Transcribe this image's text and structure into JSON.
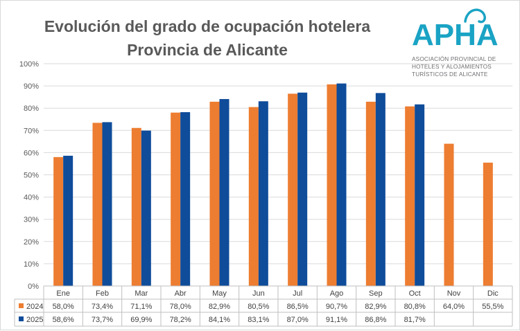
{
  "title_line1": "Evolución del grado de ocupación hotelera",
  "title_line2": "Provincia de Alicante",
  "logo": {
    "letters": "APHA",
    "sub1": "ASOCIACIÓN PROVINCIAL DE",
    "sub2": "HOTELES Y ALOJAMIENTOS",
    "sub3": "TURÍSTICOS DE ALICANTE",
    "color": "#1aa3c4"
  },
  "chart_data": {
    "type": "bar",
    "categories": [
      "Ene",
      "Feb",
      "Mar",
      "Abr",
      "May",
      "Jun",
      "Jul",
      "Ago",
      "Sep",
      "Oct",
      "Nov",
      "Dic"
    ],
    "series": [
      {
        "name": "2024",
        "color": "#ed7d31",
        "values": [
          58.0,
          73.4,
          71.1,
          78.0,
          82.9,
          80.5,
          86.5,
          90.7,
          82.9,
          80.8,
          64.0,
          55.5
        ],
        "labels": [
          "58,0%",
          "73,4%",
          "71,1%",
          "78,0%",
          "82,9%",
          "80,5%",
          "86,5%",
          "90,7%",
          "82,9%",
          "80,8%",
          "64,0%",
          "55,5%"
        ]
      },
      {
        "name": "2025",
        "color": "#0f4c9a",
        "values": [
          58.6,
          73.7,
          69.9,
          78.2,
          84.1,
          83.1,
          87.0,
          91.1,
          86.8,
          81.7,
          null,
          null
        ],
        "labels": [
          "58,6%",
          "73,7%",
          "69,9%",
          "78,2%",
          "84,1%",
          "83,1%",
          "87,0%",
          "91,1%",
          "86,8%",
          "81,7%",
          "",
          ""
        ]
      }
    ],
    "ylim": [
      0,
      100
    ],
    "yticks": [
      0,
      10,
      20,
      30,
      40,
      50,
      60,
      70,
      80,
      90,
      100
    ],
    "ytick_labels": [
      "0%",
      "10%",
      "20%",
      "30%",
      "40%",
      "50%",
      "60%",
      "70%",
      "80%",
      "90%",
      "100%"
    ],
    "grid": true,
    "legend": "data-table"
  }
}
